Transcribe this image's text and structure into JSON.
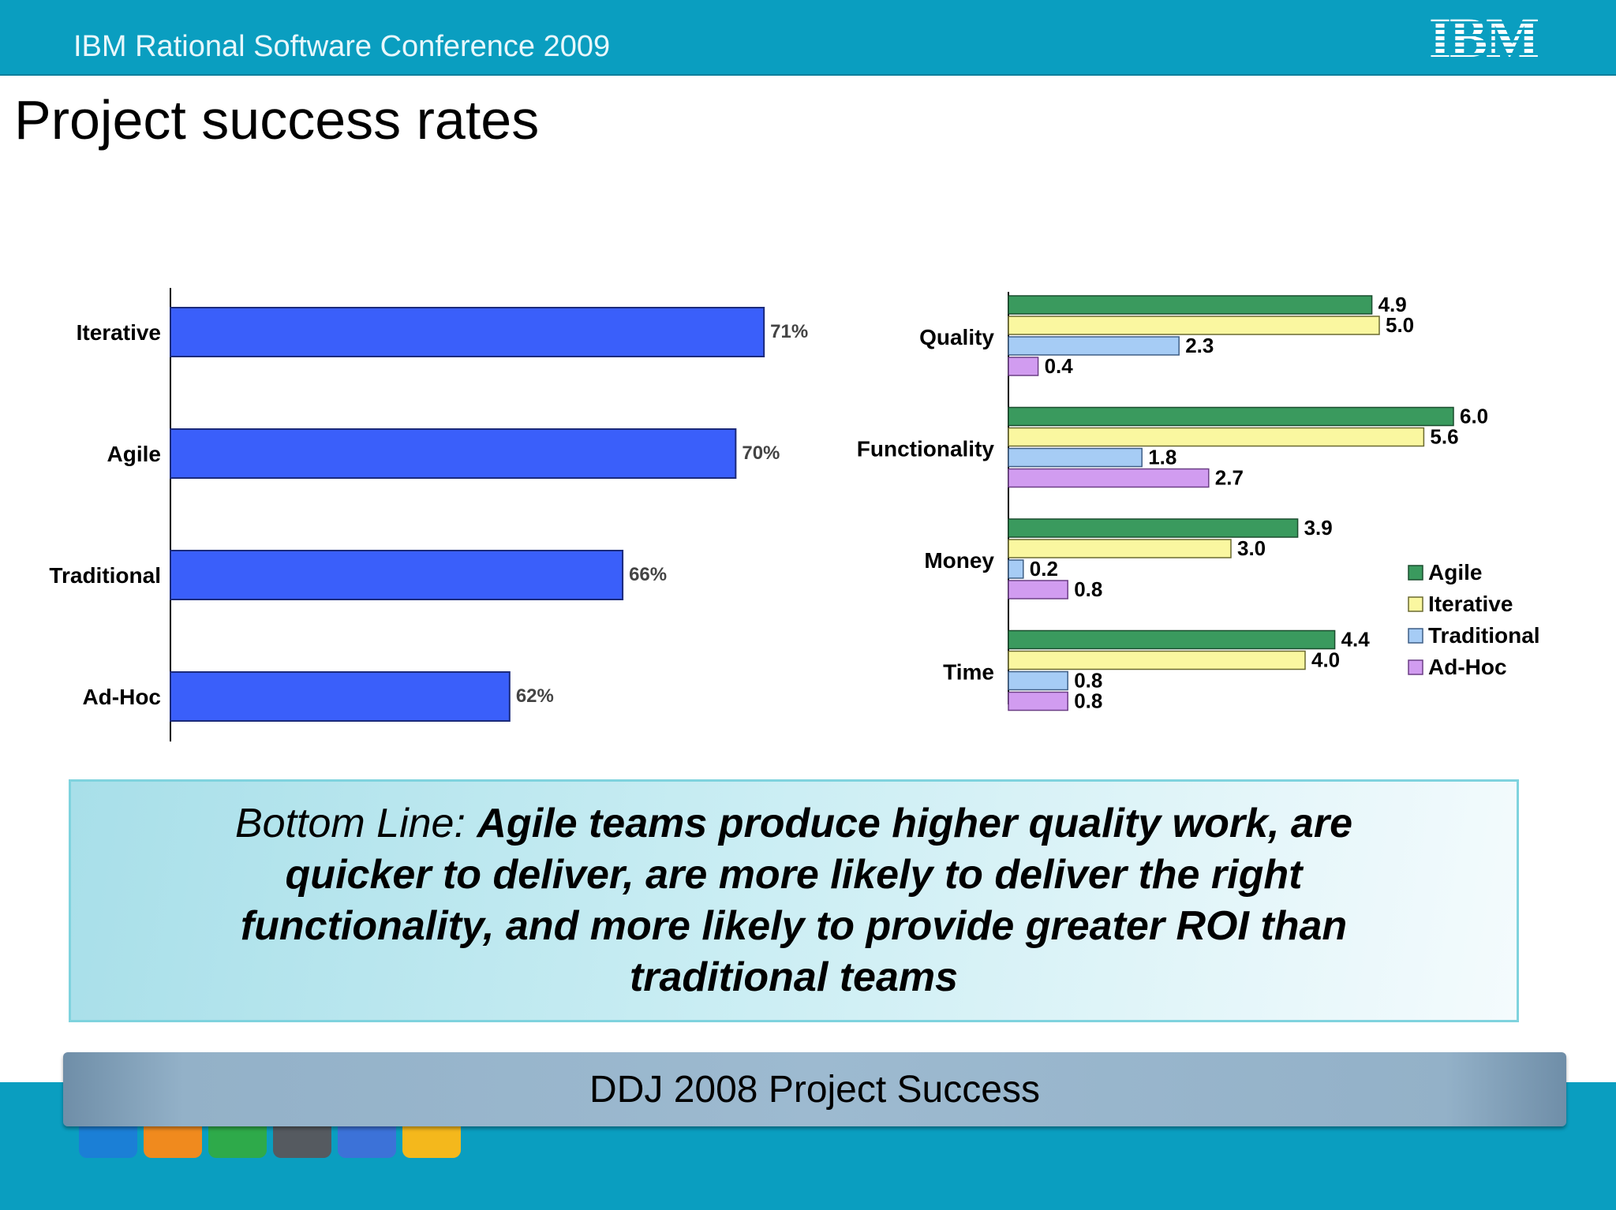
{
  "header": {
    "conference": "IBM Rational Software Conference 2009",
    "logo": "IBM"
  },
  "slide": {
    "title": "Project success rates"
  },
  "bottom_line": {
    "prefix": "Bottom Line: ",
    "text": "Agile teams produce higher quality work, are quicker to deliver, are more likely to deliver the right functionality, and more likely to provide greater ROI than traditional teams"
  },
  "source": {
    "text": "DDJ 2008 Project Success"
  },
  "toolbar": {
    "icons": [
      "chart-icon",
      "person-icon",
      "window-icon",
      "printer-icon",
      "speaker-icon",
      "folder-icon"
    ]
  },
  "colors": {
    "header": "#0a9ec0",
    "bar_blue": "#3a5ffa",
    "agile": "#3a9a5e",
    "iterative": "#faf7a0",
    "traditional": "#a6ccf5",
    "adhoc": "#d19cf0"
  },
  "chart_data": [
    {
      "type": "bar",
      "orientation": "horizontal",
      "categories": [
        "Iterative",
        "Agile",
        "Traditional",
        "Ad-Hoc"
      ],
      "values": [
        71,
        70,
        66,
        62
      ],
      "value_labels": [
        "71%",
        "70%",
        "66%",
        "62%"
      ],
      "xlim": [
        50,
        72
      ]
    },
    {
      "type": "bar",
      "orientation": "horizontal",
      "categories": [
        "Quality",
        "Functionality",
        "Money",
        "Time"
      ],
      "series": [
        {
          "name": "Agile",
          "values": [
            4.9,
            6.0,
            3.9,
            4.4
          ],
          "labels": [
            "4.9",
            "6.0",
            "3.9",
            "4.4"
          ]
        },
        {
          "name": "Iterative",
          "values": [
            5.0,
            5.6,
            3.0,
            4.0
          ],
          "labels": [
            "5.0",
            "5.6",
            "3.0",
            "4.0"
          ]
        },
        {
          "name": "Traditional",
          "values": [
            2.3,
            1.8,
            0.2,
            0.8
          ],
          "labels": [
            "2.3",
            "1.8",
            "0.2",
            "0.8"
          ]
        },
        {
          "name": "Ad-Hoc",
          "values": [
            0.4,
            2.7,
            0.8,
            0.8
          ],
          "labels": [
            "0.4",
            "2.7",
            "0.8",
            "0.8"
          ]
        }
      ],
      "xlim": [
        0,
        6.0
      ],
      "legend": "right"
    }
  ]
}
